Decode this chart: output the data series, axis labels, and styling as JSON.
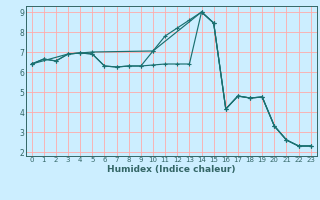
{
  "title": "",
  "xlabel": "Humidex (Indice chaleur)",
  "bg_color": "#cceeff",
  "line_color": "#1a7070",
  "grid_color": "#ffaaaa",
  "axis_color": "#336666",
  "xlim": [
    -0.5,
    23.5
  ],
  "ylim": [
    1.8,
    9.3
  ],
  "xticks": [
    0,
    1,
    2,
    3,
    4,
    5,
    6,
    7,
    8,
    9,
    10,
    11,
    12,
    13,
    14,
    15,
    16,
    17,
    18,
    19,
    20,
    21,
    22,
    23
  ],
  "yticks": [
    2,
    3,
    4,
    5,
    6,
    7,
    8,
    9
  ],
  "series1": [
    [
      0,
      6.4
    ],
    [
      1,
      6.65
    ],
    [
      2,
      6.55
    ],
    [
      3,
      6.9
    ],
    [
      4,
      6.95
    ],
    [
      5,
      6.9
    ],
    [
      6,
      6.3
    ],
    [
      7,
      6.25
    ],
    [
      8,
      6.3
    ],
    [
      9,
      6.3
    ],
    [
      10,
      6.35
    ],
    [
      11,
      6.4
    ],
    [
      12,
      6.4
    ],
    [
      13,
      6.4
    ],
    [
      14,
      9.0
    ],
    [
      15,
      8.45
    ],
    [
      16,
      4.15
    ],
    [
      17,
      4.8
    ],
    [
      18,
      4.7
    ],
    [
      19,
      4.75
    ],
    [
      20,
      3.3
    ],
    [
      21,
      2.6
    ],
    [
      22,
      2.3
    ],
    [
      23,
      2.3
    ]
  ],
  "series2": [
    [
      0,
      6.4
    ],
    [
      1,
      6.65
    ],
    [
      2,
      6.55
    ],
    [
      3,
      6.9
    ],
    [
      4,
      6.95
    ],
    [
      5,
      6.9
    ],
    [
      6,
      6.3
    ],
    [
      7,
      6.25
    ],
    [
      8,
      6.3
    ],
    [
      9,
      6.3
    ],
    [
      10,
      7.05
    ],
    [
      11,
      7.8
    ],
    [
      12,
      8.2
    ],
    [
      13,
      8.6
    ],
    [
      14,
      9.0
    ],
    [
      15,
      8.45
    ],
    [
      16,
      4.15
    ],
    [
      17,
      4.8
    ],
    [
      18,
      4.7
    ],
    [
      19,
      4.75
    ],
    [
      20,
      3.3
    ],
    [
      21,
      2.6
    ],
    [
      22,
      2.3
    ],
    [
      23,
      2.3
    ]
  ],
  "series3": [
    [
      0,
      6.4
    ],
    [
      3,
      6.9
    ],
    [
      4,
      6.95
    ],
    [
      5,
      7.0
    ],
    [
      10,
      7.05
    ],
    [
      14,
      9.0
    ],
    [
      15,
      8.45
    ],
    [
      16,
      4.15
    ],
    [
      17,
      4.8
    ],
    [
      18,
      4.7
    ],
    [
      19,
      4.75
    ],
    [
      20,
      3.3
    ],
    [
      21,
      2.6
    ],
    [
      22,
      2.3
    ],
    [
      23,
      2.3
    ]
  ],
  "xlabel_fontsize": 6.5,
  "tick_fontsize": 5.0,
  "linewidth": 0.85,
  "markersize": 3.5
}
